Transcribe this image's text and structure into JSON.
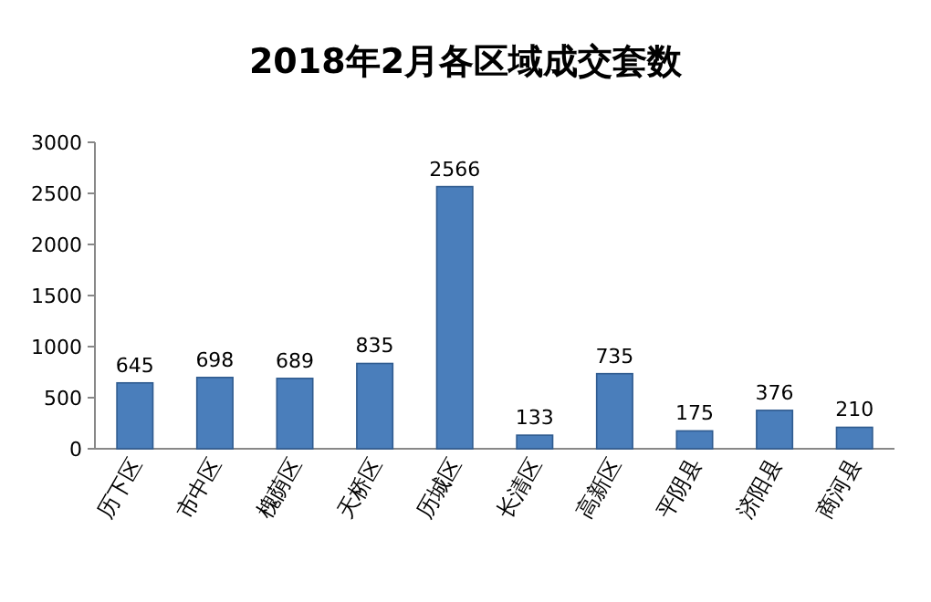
{
  "chart_data": {
    "type": "bar",
    "title": "2018年2月各区域成交套数",
    "categories": [
      "历下区",
      "市中区",
      "槐荫区",
      "天桥区",
      "历城区",
      "长清区",
      "高新区",
      "平阴县",
      "济阳县",
      "商河县"
    ],
    "values": [
      645,
      698,
      689,
      835,
      2566,
      133,
      735,
      175,
      376,
      210
    ],
    "color": "#4a7ebb",
    "ylim": [
      0,
      3000
    ],
    "yticks": [
      0,
      500,
      1000,
      1500,
      2000,
      2500,
      3000
    ],
    "data_labels": true
  }
}
